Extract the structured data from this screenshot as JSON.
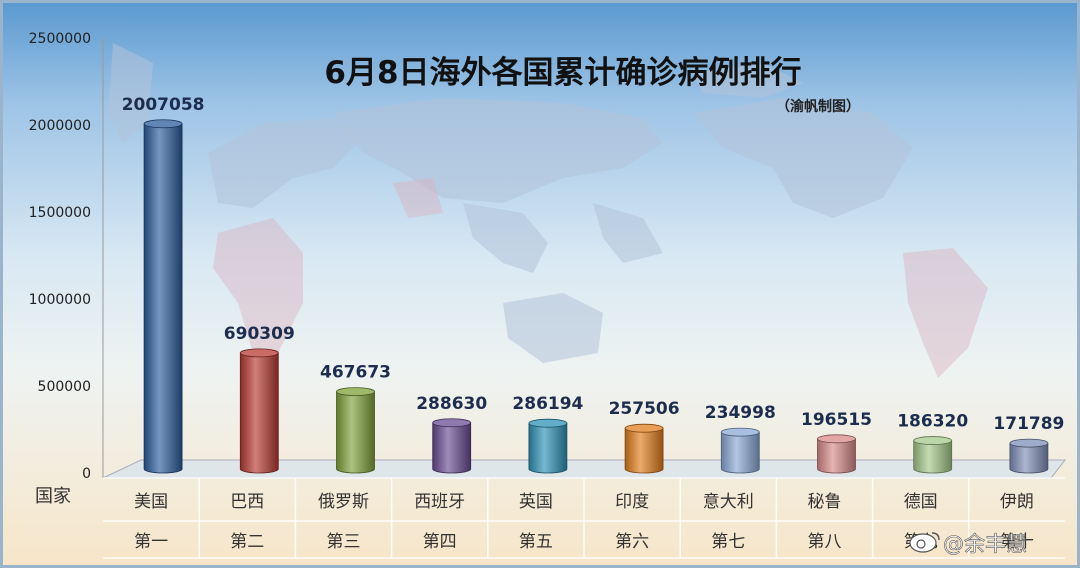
{
  "chart_data": {
    "type": "bar",
    "title": "6月8日海外各国累计确诊病例排行",
    "subtitle": "（渝帆制图）",
    "xlabel": "国家",
    "ylabel": "",
    "ylim": [
      0,
      2500000
    ],
    "y_ticks": [
      "0",
      "500000",
      "1000000",
      "1500000",
      "2000000",
      "2500000"
    ],
    "y_tick_values": [
      0,
      500000,
      1000000,
      1500000,
      2000000,
      2500000
    ],
    "categories": [
      "美国",
      "巴西",
      "俄罗斯",
      "西班牙",
      "英国",
      "印度",
      "意大利",
      "秘鲁",
      "德国",
      "伊朗"
    ],
    "ranks": [
      "第一",
      "第二",
      "第三",
      "第四",
      "第五",
      "第六",
      "第七",
      "第八",
      "第九",
      "第十"
    ],
    "values": [
      2007058,
      690309,
      467673,
      288630,
      286194,
      257506,
      234998,
      196515,
      186320,
      171789
    ],
    "value_labels": [
      "2007058",
      "690309",
      "467673",
      "288630",
      "286194",
      "257506",
      "234998",
      "196515",
      "186320",
      "171789"
    ],
    "bar_colors": [
      "#2c5e9e",
      "#b93a33",
      "#7fa23a",
      "#6a4c93",
      "#2e92b8",
      "#e27d1c",
      "#8aa9d6",
      "#d98a8a",
      "#a6c98a",
      "#7f8fb8"
    ],
    "grid": false,
    "legend": "none"
  },
  "watermark": "@余丰慧"
}
